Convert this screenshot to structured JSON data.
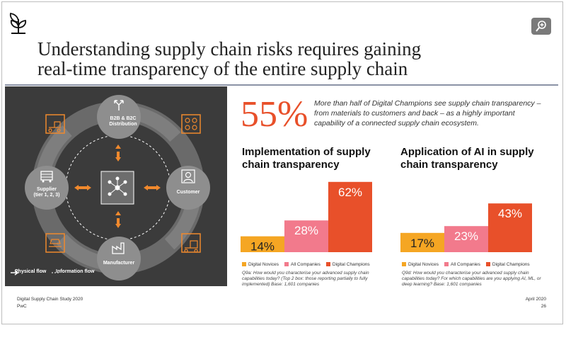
{
  "header": {
    "title_line1": "Understanding supply chain risks requires gaining",
    "title_line2": "real-time transparency of the entire supply chain",
    "zoom_icon": "zoom-in-icon",
    "logo_icon": "plant-logo-icon"
  },
  "diagram": {
    "nodes": {
      "top": "B2B & B2C Distribution",
      "left_line1": "Supplier",
      "left_line2": "(tier 1, 2, 3)",
      "right": "Customer",
      "bottom": "Manufacturer"
    },
    "legend": {
      "physical": "Physical flow",
      "information": "Information flow"
    }
  },
  "highlight": {
    "value": "55%",
    "text": "More than half of Digital Champions see supply chain transparency – from materials to customers and back – as a highly important capability of a connected supply chain ecosystem."
  },
  "chart_data": [
    {
      "type": "bar",
      "title": "Implementation of supply chain transparency",
      "categories": [
        "Digital Novices",
        "All Companies",
        "Digital Champions"
      ],
      "values": [
        14,
        28,
        62
      ],
      "labels": [
        "14%",
        "28%",
        "62%"
      ],
      "colors": [
        "#f5a623",
        "#f27a8c",
        "#e8502a"
      ],
      "note": "Q9a: How would you characterise your advanced supply chain capabilities today? (Top 2 box: those reporting partially to fully implemented) Base: 1,601 companies"
    },
    {
      "type": "bar",
      "title": "Application of AI in supply chain transparency",
      "categories": [
        "Digital Novices",
        "All Companies",
        "Digital Champions"
      ],
      "values": [
        17,
        23,
        43
      ],
      "labels": [
        "17%",
        "23%",
        "43%"
      ],
      "colors": [
        "#f5a623",
        "#f27a8c",
        "#e8502a"
      ],
      "note": "Q9d: How would you characterise your advanced supply chain capabilities today? For which capabilities are you applying AI, ML, or deep learning? Base: 1,601 companies"
    }
  ],
  "footer": {
    "study": "Digital Supply Chain Study 2020",
    "company": "PwC",
    "date": "April 2020",
    "page": "26"
  }
}
